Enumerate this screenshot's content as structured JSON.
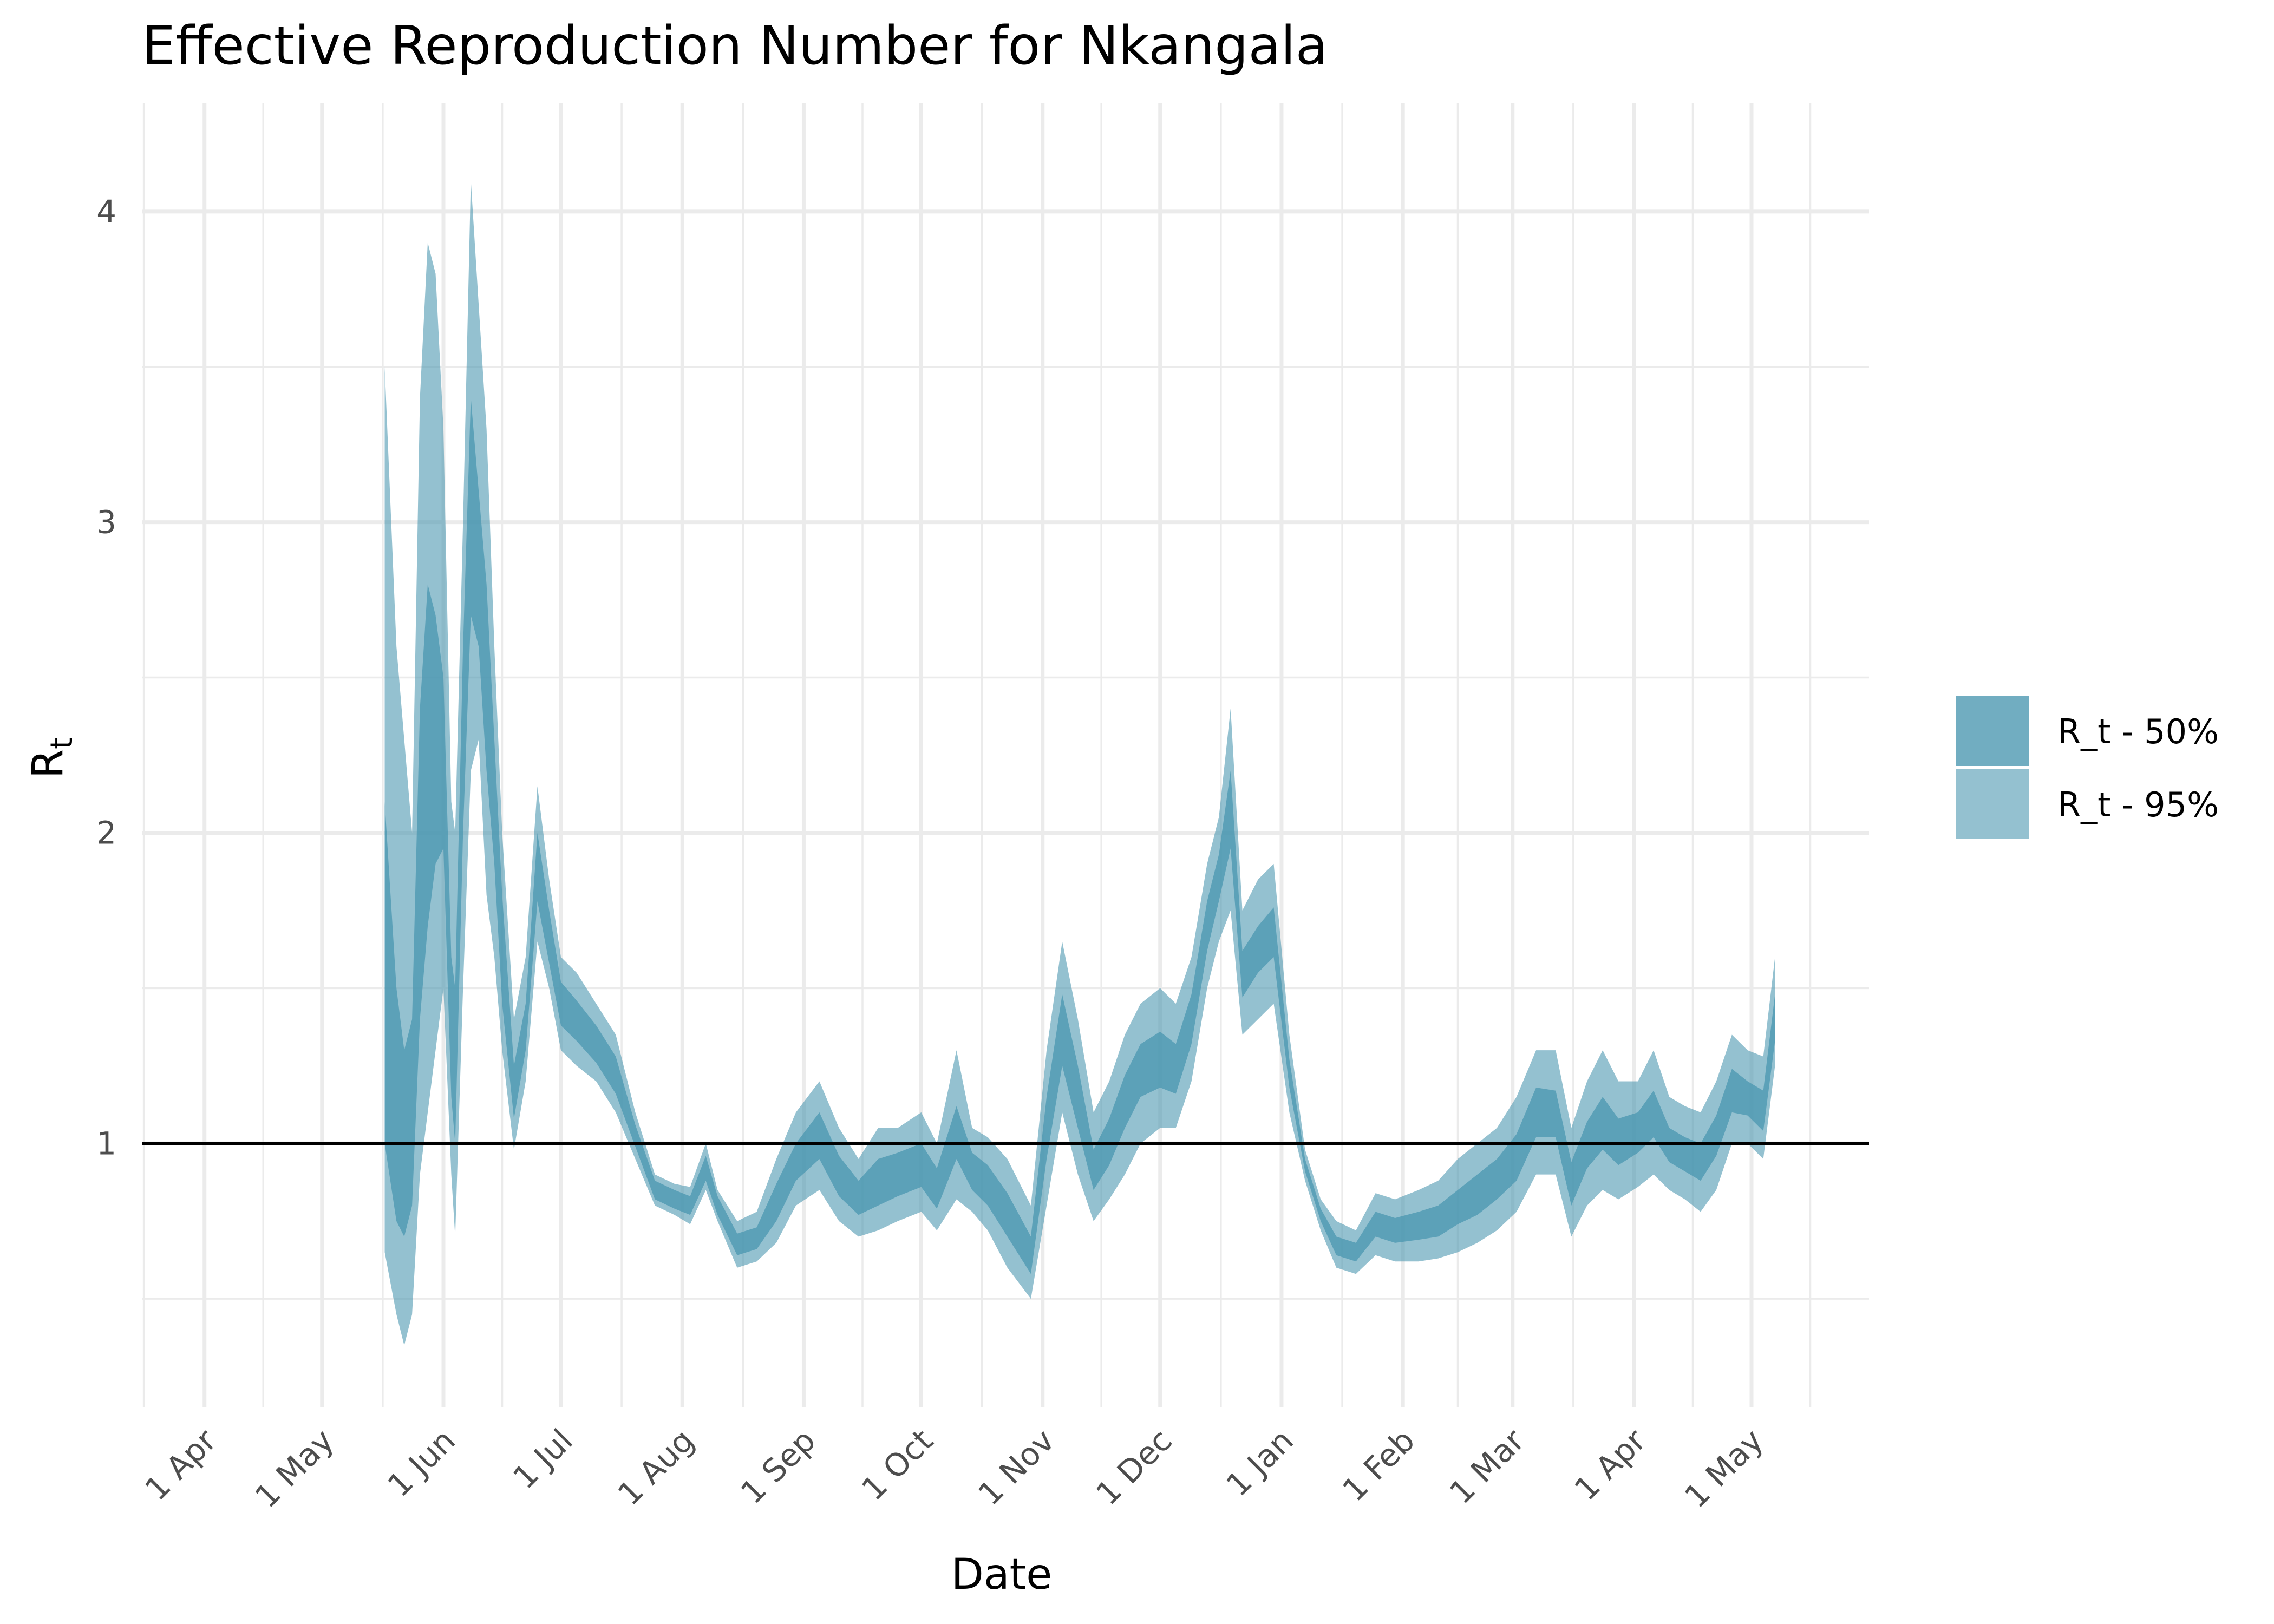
{
  "chart_data": {
    "type": "area",
    "title": "Effective Reproduction Number for Nkangala",
    "xlabel": "Date",
    "ylabel_main": "R",
    "ylabel_sub": "t",
    "x_ticks": [
      {
        "label": "1 Apr",
        "date": "2020-04-01"
      },
      {
        "label": "1 May",
        "date": "2020-05-01"
      },
      {
        "label": "1 Jun",
        "date": "2020-06-01"
      },
      {
        "label": "1 Jul",
        "date": "2020-07-01"
      },
      {
        "label": "1 Aug",
        "date": "2020-08-01"
      },
      {
        "label": "1 Sep",
        "date": "2020-09-01"
      },
      {
        "label": "1 Oct",
        "date": "2020-10-01"
      },
      {
        "label": "1 Nov",
        "date": "2020-11-01"
      },
      {
        "label": "1 Dec",
        "date": "2020-12-01"
      },
      {
        "label": "1 Jan",
        "date": "2021-01-01"
      },
      {
        "label": "1 Feb",
        "date": "2021-02-01"
      },
      {
        "label": "1 Mar",
        "date": "2021-03-01"
      },
      {
        "label": "1 Apr",
        "date": "2021-04-01"
      },
      {
        "label": "1 May",
        "date": "2021-05-01"
      }
    ],
    "x_range": [
      "2020-03-16",
      "2021-05-31"
    ],
    "y_ticks": [
      1,
      2,
      3,
      4
    ],
    "ylim": [
      0.15,
      4.35
    ],
    "reference_line": 1,
    "grid": true,
    "legend_position": "right",
    "legend": [
      {
        "label": "R_t - 50%",
        "color": "#4d98b1",
        "opacity": 0.8
      },
      {
        "label": "R_t - 95%",
        "color": "#4d98b1",
        "opacity": 0.6
      }
    ],
    "series": [
      {
        "name": "R_t - 95%",
        "points": [
          [
            "2020-05-17",
            0.65,
            3.5
          ],
          [
            "2020-05-20",
            0.45,
            2.6
          ],
          [
            "2020-05-22",
            0.35,
            2.3
          ],
          [
            "2020-05-24",
            0.45,
            2.0
          ],
          [
            "2020-05-26",
            0.9,
            3.4
          ],
          [
            "2020-05-28",
            1.1,
            3.9
          ],
          [
            "2020-05-30",
            1.3,
            3.8
          ],
          [
            "2020-06-01",
            1.5,
            3.3
          ],
          [
            "2020-06-03",
            0.9,
            2.1
          ],
          [
            "2020-06-04",
            0.7,
            2.0
          ],
          [
            "2020-06-06",
            1.5,
            3.0
          ],
          [
            "2020-06-08",
            2.2,
            4.1
          ],
          [
            "2020-06-10",
            2.3,
            3.7
          ],
          [
            "2020-06-12",
            1.8,
            3.3
          ],
          [
            "2020-06-14",
            1.6,
            2.6
          ],
          [
            "2020-06-16",
            1.3,
            2.0
          ],
          [
            "2020-06-19",
            0.98,
            1.4
          ],
          [
            "2020-06-22",
            1.2,
            1.6
          ],
          [
            "2020-06-25",
            1.65,
            2.15
          ],
          [
            "2020-06-28",
            1.5,
            1.85
          ],
          [
            "2020-07-01",
            1.3,
            1.6
          ],
          [
            "2020-07-05",
            1.25,
            1.55
          ],
          [
            "2020-07-10",
            1.2,
            1.45
          ],
          [
            "2020-07-15",
            1.1,
            1.35
          ],
          [
            "2020-07-20",
            0.95,
            1.1
          ],
          [
            "2020-07-25",
            0.8,
            0.9
          ],
          [
            "2020-07-30",
            0.77,
            0.87
          ],
          [
            "2020-08-03",
            0.74,
            0.86
          ],
          [
            "2020-08-07",
            0.85,
            1.0
          ],
          [
            "2020-08-10",
            0.75,
            0.85
          ],
          [
            "2020-08-15",
            0.6,
            0.75
          ],
          [
            "2020-08-20",
            0.62,
            0.78
          ],
          [
            "2020-08-25",
            0.68,
            0.95
          ],
          [
            "2020-08-30",
            0.8,
            1.1
          ],
          [
            "2020-09-05",
            0.85,
            1.2
          ],
          [
            "2020-09-10",
            0.75,
            1.05
          ],
          [
            "2020-09-15",
            0.7,
            0.95
          ],
          [
            "2020-09-20",
            0.72,
            1.05
          ],
          [
            "2020-09-25",
            0.75,
            1.05
          ],
          [
            "2020-10-01",
            0.78,
            1.1
          ],
          [
            "2020-10-05",
            0.72,
            1.0
          ],
          [
            "2020-10-10",
            0.82,
            1.3
          ],
          [
            "2020-10-14",
            0.78,
            1.05
          ],
          [
            "2020-10-18",
            0.72,
            1.02
          ],
          [
            "2020-10-23",
            0.6,
            0.95
          ],
          [
            "2020-10-29",
            0.5,
            0.8
          ],
          [
            "2020-11-02",
            0.8,
            1.3
          ],
          [
            "2020-11-06",
            1.1,
            1.65
          ],
          [
            "2020-11-10",
            0.9,
            1.4
          ],
          [
            "2020-11-14",
            0.75,
            1.1
          ],
          [
            "2020-11-18",
            0.82,
            1.2
          ],
          [
            "2020-11-22",
            0.9,
            1.35
          ],
          [
            "2020-11-26",
            1.0,
            1.45
          ],
          [
            "2020-12-01",
            1.05,
            1.5
          ],
          [
            "2020-12-05",
            1.05,
            1.45
          ],
          [
            "2020-12-09",
            1.2,
            1.6
          ],
          [
            "2020-12-13",
            1.5,
            1.9
          ],
          [
            "2020-12-16",
            1.65,
            2.05
          ],
          [
            "2020-12-19",
            1.75,
            2.4
          ],
          [
            "2020-12-22",
            1.35,
            1.75
          ],
          [
            "2020-12-26",
            1.4,
            1.85
          ],
          [
            "2020-12-30",
            1.45,
            1.9
          ],
          [
            "2021-01-03",
            1.1,
            1.35
          ],
          [
            "2021-01-07",
            0.88,
            0.98
          ],
          [
            "2021-01-11",
            0.72,
            0.82
          ],
          [
            "2021-01-15",
            0.6,
            0.75
          ],
          [
            "2021-01-20",
            0.58,
            0.72
          ],
          [
            "2021-01-25",
            0.64,
            0.84
          ],
          [
            "2021-01-30",
            0.62,
            0.82
          ],
          [
            "2021-02-05",
            0.62,
            0.85
          ],
          [
            "2021-02-10",
            0.63,
            0.88
          ],
          [
            "2021-02-15",
            0.65,
            0.95
          ],
          [
            "2021-02-20",
            0.68,
            1.0
          ],
          [
            "2021-02-25",
            0.72,
            1.05
          ],
          [
            "2021-03-02",
            0.78,
            1.15
          ],
          [
            "2021-03-07",
            0.9,
            1.3
          ],
          [
            "2021-03-12",
            0.9,
            1.3
          ],
          [
            "2021-03-16",
            0.7,
            1.05
          ],
          [
            "2021-03-20",
            0.8,
            1.2
          ],
          [
            "2021-03-24",
            0.85,
            1.3
          ],
          [
            "2021-03-28",
            0.82,
            1.2
          ],
          [
            "2021-04-02",
            0.86,
            1.2
          ],
          [
            "2021-04-06",
            0.9,
            1.3
          ],
          [
            "2021-04-10",
            0.85,
            1.15
          ],
          [
            "2021-04-14",
            0.82,
            1.12
          ],
          [
            "2021-04-18",
            0.78,
            1.1
          ],
          [
            "2021-04-22",
            0.85,
            1.2
          ],
          [
            "2021-04-26",
            1.0,
            1.35
          ],
          [
            "2021-04-30",
            1.0,
            1.3
          ],
          [
            "2021-05-04",
            0.95,
            1.28
          ],
          [
            "2021-05-07",
            1.25,
            1.6
          ]
        ]
      },
      {
        "name": "R_t - 50%",
        "points": [
          [
            "2020-05-17",
            1.0,
            2.1
          ],
          [
            "2020-05-20",
            0.75,
            1.5
          ],
          [
            "2020-05-22",
            0.7,
            1.3
          ],
          [
            "2020-05-24",
            0.8,
            1.4
          ],
          [
            "2020-05-26",
            1.4,
            2.4
          ],
          [
            "2020-05-28",
            1.7,
            2.8
          ],
          [
            "2020-05-30",
            1.9,
            2.7
          ],
          [
            "2020-06-01",
            1.95,
            2.5
          ],
          [
            "2020-06-03",
            1.15,
            1.6
          ],
          [
            "2020-06-04",
            1.0,
            1.5
          ],
          [
            "2020-06-06",
            2.0,
            2.6
          ],
          [
            "2020-06-08",
            2.7,
            3.4
          ],
          [
            "2020-06-10",
            2.6,
            3.1
          ],
          [
            "2020-06-12",
            2.2,
            2.8
          ],
          [
            "2020-06-14",
            1.9,
            2.3
          ],
          [
            "2020-06-16",
            1.45,
            1.8
          ],
          [
            "2020-06-19",
            1.08,
            1.25
          ],
          [
            "2020-06-22",
            1.3,
            1.45
          ],
          [
            "2020-06-25",
            1.78,
            2.0
          ],
          [
            "2020-06-28",
            1.58,
            1.75
          ],
          [
            "2020-07-01",
            1.38,
            1.52
          ],
          [
            "2020-07-05",
            1.33,
            1.46
          ],
          [
            "2020-07-10",
            1.26,
            1.38
          ],
          [
            "2020-07-15",
            1.16,
            1.28
          ],
          [
            "2020-07-20",
            0.99,
            1.06
          ],
          [
            "2020-07-25",
            0.82,
            0.88
          ],
          [
            "2020-07-30",
            0.79,
            0.85
          ],
          [
            "2020-08-03",
            0.77,
            0.83
          ],
          [
            "2020-08-07",
            0.88,
            0.96
          ],
          [
            "2020-08-10",
            0.77,
            0.83
          ],
          [
            "2020-08-15",
            0.64,
            0.71
          ],
          [
            "2020-08-20",
            0.66,
            0.73
          ],
          [
            "2020-08-25",
            0.75,
            0.87
          ],
          [
            "2020-08-30",
            0.88,
            1.0
          ],
          [
            "2020-09-05",
            0.95,
            1.1
          ],
          [
            "2020-09-10",
            0.83,
            0.96
          ],
          [
            "2020-09-15",
            0.77,
            0.88
          ],
          [
            "2020-09-20",
            0.8,
            0.95
          ],
          [
            "2020-09-25",
            0.83,
            0.97
          ],
          [
            "2020-10-01",
            0.86,
            1.0
          ],
          [
            "2020-10-05",
            0.79,
            0.92
          ],
          [
            "2020-10-10",
            0.95,
            1.12
          ],
          [
            "2020-10-14",
            0.85,
            0.97
          ],
          [
            "2020-10-18",
            0.8,
            0.93
          ],
          [
            "2020-10-23",
            0.7,
            0.84
          ],
          [
            "2020-10-29",
            0.58,
            0.7
          ],
          [
            "2020-11-02",
            0.95,
            1.15
          ],
          [
            "2020-11-06",
            1.25,
            1.48
          ],
          [
            "2020-11-10",
            1.05,
            1.25
          ],
          [
            "2020-11-14",
            0.85,
            0.98
          ],
          [
            "2020-11-18",
            0.93,
            1.08
          ],
          [
            "2020-11-22",
            1.05,
            1.22
          ],
          [
            "2020-11-26",
            1.15,
            1.32
          ],
          [
            "2020-12-01",
            1.18,
            1.36
          ],
          [
            "2020-12-05",
            1.16,
            1.32
          ],
          [
            "2020-12-09",
            1.32,
            1.48
          ],
          [
            "2020-12-13",
            1.62,
            1.78
          ],
          [
            "2020-12-16",
            1.78,
            1.93
          ],
          [
            "2020-12-19",
            1.95,
            2.2
          ],
          [
            "2020-12-22",
            1.47,
            1.62
          ],
          [
            "2020-12-26",
            1.55,
            1.7
          ],
          [
            "2020-12-30",
            1.6,
            1.76
          ],
          [
            "2021-01-03",
            1.18,
            1.27
          ],
          [
            "2021-01-07",
            0.91,
            0.95
          ],
          [
            "2021-01-11",
            0.75,
            0.79
          ],
          [
            "2021-01-15",
            0.64,
            0.7
          ],
          [
            "2021-01-20",
            0.62,
            0.68
          ],
          [
            "2021-01-25",
            0.7,
            0.78
          ],
          [
            "2021-01-30",
            0.68,
            0.76
          ],
          [
            "2021-02-05",
            0.69,
            0.78
          ],
          [
            "2021-02-10",
            0.7,
            0.8
          ],
          [
            "2021-02-15",
            0.74,
            0.85
          ],
          [
            "2021-02-20",
            0.77,
            0.9
          ],
          [
            "2021-02-25",
            0.82,
            0.95
          ],
          [
            "2021-03-02",
            0.88,
            1.03
          ],
          [
            "2021-03-07",
            1.02,
            1.18
          ],
          [
            "2021-03-12",
            1.02,
            1.17
          ],
          [
            "2021-03-16",
            0.8,
            0.94
          ],
          [
            "2021-03-20",
            0.92,
            1.07
          ],
          [
            "2021-03-24",
            0.98,
            1.15
          ],
          [
            "2021-03-28",
            0.93,
            1.08
          ],
          [
            "2021-04-02",
            0.97,
            1.1
          ],
          [
            "2021-04-06",
            1.02,
            1.17
          ],
          [
            "2021-04-10",
            0.94,
            1.05
          ],
          [
            "2021-04-14",
            0.91,
            1.02
          ],
          [
            "2021-04-18",
            0.88,
            1.0
          ],
          [
            "2021-04-22",
            0.96,
            1.09
          ],
          [
            "2021-04-26",
            1.1,
            1.24
          ],
          [
            "2021-04-30",
            1.09,
            1.2
          ],
          [
            "2021-05-04",
            1.04,
            1.17
          ],
          [
            "2021-05-07",
            1.33,
            1.48
          ]
        ]
      }
    ]
  }
}
